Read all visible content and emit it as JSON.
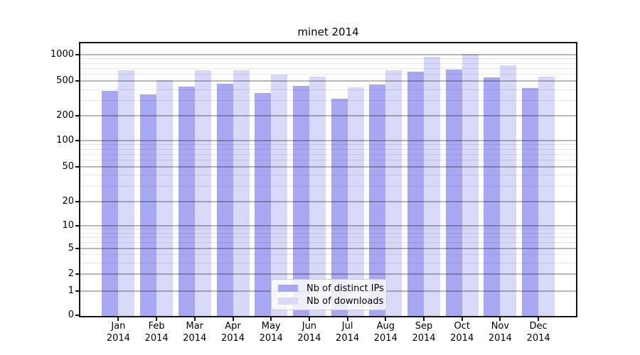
{
  "title": "minet 2014",
  "chart_data": {
    "type": "bar",
    "title": "minet 2014",
    "categories": [
      "Jan 2014",
      "Feb 2014",
      "Mar 2014",
      "Apr 2014",
      "May 2014",
      "Jun 2014",
      "Jul 2014",
      "Aug 2014",
      "Sep 2014",
      "Oct 2014",
      "Nov 2014",
      "Dec 2014"
    ],
    "series": [
      {
        "name": "Nb of distinct IPs",
        "color": "#a8a8f2",
        "values": [
          385,
          350,
          435,
          465,
          365,
          440,
          315,
          460,
          640,
          685,
          550,
          420
        ]
      },
      {
        "name": "Nb of downloads",
        "color": "#d8d8f8",
        "values": [
          665,
          515,
          660,
          670,
          600,
          560,
          425,
          670,
          950,
          1020,
          755,
          565
        ]
      }
    ],
    "yscale": "symlog",
    "y_ticks": [
      0,
      1,
      2,
      5,
      10,
      20,
      50,
      100,
      200,
      500,
      1000
    ],
    "ylim": [
      0,
      1350
    ],
    "xlabel": "",
    "ylabel": "",
    "grid": true,
    "legend_position": "lower center"
  },
  "colors": {
    "bar_distinct_ips": "#a8a8f2",
    "bar_downloads": "#d8d8f8",
    "grid_major": "#b3b3b3",
    "grid_minor": "#e8e8e8",
    "axis": "#151515",
    "background": "#ffffff"
  }
}
